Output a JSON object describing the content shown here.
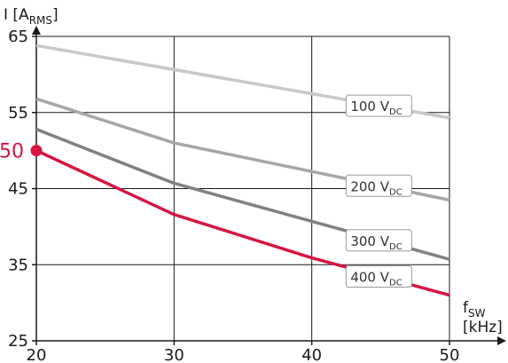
{
  "chart_data": {
    "type": "line",
    "xlabel": {
      "main": "f",
      "sub": "SW",
      "unit": "[kHz]"
    },
    "ylabel": {
      "main": "I [A",
      "sub": "RMS",
      "close": "]"
    },
    "xlim": [
      20,
      50
    ],
    "ylim": [
      25,
      65
    ],
    "xticks": [
      20,
      30,
      40,
      50
    ],
    "yticks": [
      25,
      35,
      45,
      55,
      65
    ],
    "grid": true,
    "series": [
      {
        "main": "100 V",
        "sub": "DC",
        "color": "#c8c8c8",
        "x": [
          20,
          50
        ],
        "y": [
          63.8,
          54.3
        ]
      },
      {
        "main": "200 V",
        "sub": "DC",
        "color": "#a6a6a6",
        "x": [
          20,
          30,
          50
        ],
        "y": [
          56.8,
          51.0,
          43.5
        ]
      },
      {
        "main": "300 V",
        "sub": "DC",
        "color": "#808080",
        "x": [
          20,
          30,
          50
        ],
        "y": [
          52.8,
          45.7,
          35.7
        ]
      },
      {
        "main": "400 V",
        "sub": "DC",
        "color": "#d6163f",
        "x": [
          20,
          30,
          40,
          50
        ],
        "y": [
          50.0,
          41.6,
          35.9,
          31.0
        ]
      }
    ],
    "highlight": {
      "x": 20,
      "y": 50,
      "label": "50",
      "color": "#d6163f"
    }
  }
}
